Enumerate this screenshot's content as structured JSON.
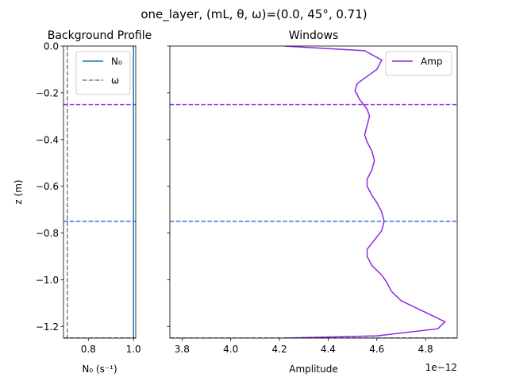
{
  "figure": {
    "suptitle": "one_layer, (mL, θ, ω)=(0.0, 45°, 0.71)"
  },
  "chart_data": [
    {
      "type": "line",
      "title": "Background Profile",
      "xlabel": "N₀ (s⁻¹)",
      "ylabel": "z (m)",
      "xlim": [
        0.69,
        1.01
      ],
      "ylim": [
        -1.25,
        0.0
      ],
      "x_ticks": [
        0.8,
        1.0
      ],
      "x_tick_labels": [
        "0.8",
        "1.0"
      ],
      "y_ticks": [
        0.0,
        -0.2,
        -0.4,
        -0.6,
        -0.8,
        -1.0,
        -1.2
      ],
      "y_tick_labels": [
        "0.0",
        "−0.2",
        "−0.4",
        "−0.6",
        "−0.8",
        "−1.0",
        "−1.2"
      ],
      "grid": false,
      "legend_position": "top-right",
      "series": [
        {
          "name": "N₀",
          "color": "#1f77b4",
          "style": "solid",
          "x": [
            1.0,
            1.0
          ],
          "y": [
            0.0,
            -1.25
          ]
        },
        {
          "name": "ω",
          "color": "#708090",
          "style": "dashed",
          "x": [
            0.707,
            0.707
          ],
          "y": [
            0.0,
            -1.25
          ]
        }
      ],
      "hlines": [
        {
          "y": -0.25,
          "color": "#8a2be2"
        },
        {
          "y": -0.75,
          "color": "#4169e1"
        },
        {
          "y": -1.25,
          "color": "#000000"
        }
      ]
    },
    {
      "type": "line",
      "title": "Windows",
      "xlabel": "Amplitude",
      "offset_text": "1e−12",
      "xlim": [
        3.75,
        4.93
      ],
      "ylim": [
        -1.25,
        0.0
      ],
      "x_ticks": [
        3.8,
        4.0,
        4.2,
        4.4,
        4.6,
        4.8
      ],
      "x_tick_labels": [
        "3.8",
        "4.0",
        "4.2",
        "4.4",
        "4.6",
        "4.8"
      ],
      "y_ticks": [
        0.0,
        -0.2,
        -0.4,
        -0.6,
        -0.8,
        -1.0,
        -1.2
      ],
      "grid": false,
      "legend_position": "top-right",
      "series": [
        {
          "name": "Amp",
          "color": "#8a2be2",
          "x": [
            4.22,
            4.55,
            4.62,
            4.6,
            4.56,
            4.52,
            4.51,
            4.53,
            4.56,
            4.57,
            4.56,
            4.55,
            4.56,
            4.58,
            4.59,
            4.58,
            4.56,
            4.56,
            4.58,
            4.6,
            4.62,
            4.63,
            4.62,
            4.59,
            4.56,
            4.56,
            4.58,
            4.62,
            4.64,
            4.66,
            4.7,
            4.76,
            4.82,
            4.88,
            4.85,
            4.6,
            4.22
          ],
          "y": [
            0.0,
            -0.02,
            -0.06,
            -0.1,
            -0.13,
            -0.16,
            -0.19,
            -0.23,
            -0.27,
            -0.3,
            -0.34,
            -0.38,
            -0.41,
            -0.45,
            -0.49,
            -0.53,
            -0.57,
            -0.6,
            -0.64,
            -0.67,
            -0.71,
            -0.75,
            -0.79,
            -0.83,
            -0.87,
            -0.9,
            -0.94,
            -0.98,
            -1.01,
            -1.05,
            -1.09,
            -1.12,
            -1.15,
            -1.18,
            -1.21,
            -1.24,
            -1.25
          ]
        }
      ],
      "hlines": [
        {
          "y": -0.25,
          "color": "#8a2be2"
        },
        {
          "y": -0.75,
          "color": "#4169e1"
        },
        {
          "y": -1.25,
          "color": "#000000"
        }
      ]
    }
  ]
}
